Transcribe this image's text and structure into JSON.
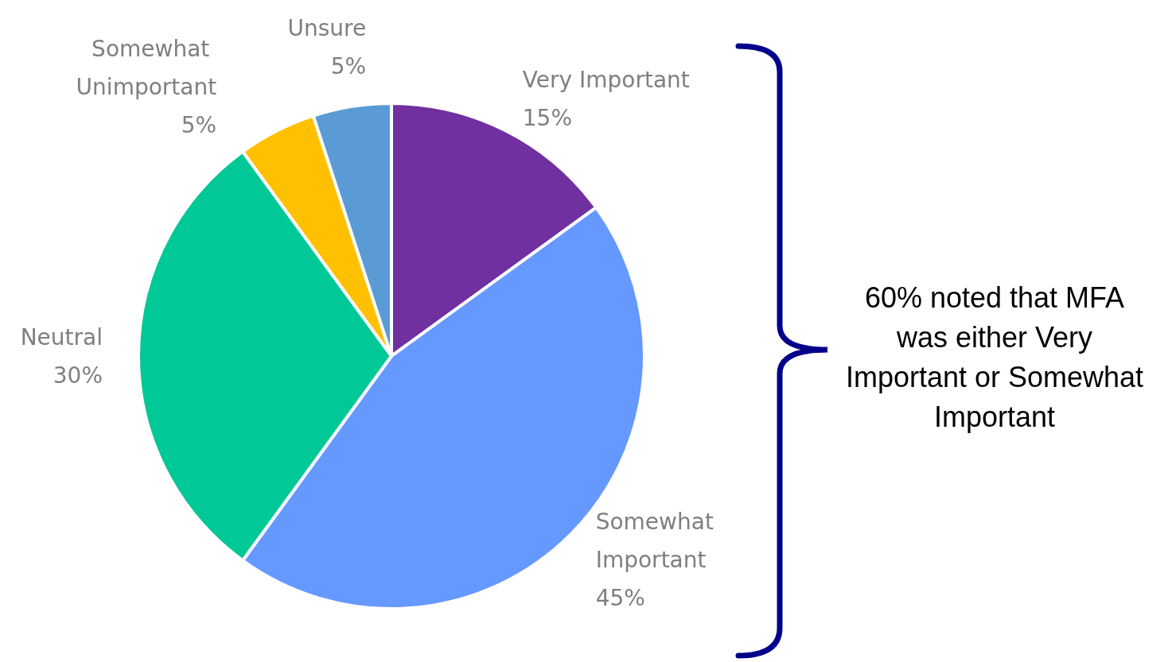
{
  "chart_data": {
    "type": "pie",
    "categories": [
      "Very Important",
      "Somewhat Important",
      "Neutral",
      "Somewhat Unimportant",
      "Unsure"
    ],
    "values": [
      15,
      45,
      30,
      5,
      5
    ],
    "value_labels": [
      "15%",
      "45%",
      "30%",
      "5%",
      "5%"
    ],
    "colors": [
      "#7030a0",
      "#6699ff",
      "#00c896",
      "#ffc000",
      "#5b9bd5"
    ],
    "annotations": [
      "60% noted that MFA was either Very Important or Somewhat Important"
    ],
    "legend": false
  }
}
